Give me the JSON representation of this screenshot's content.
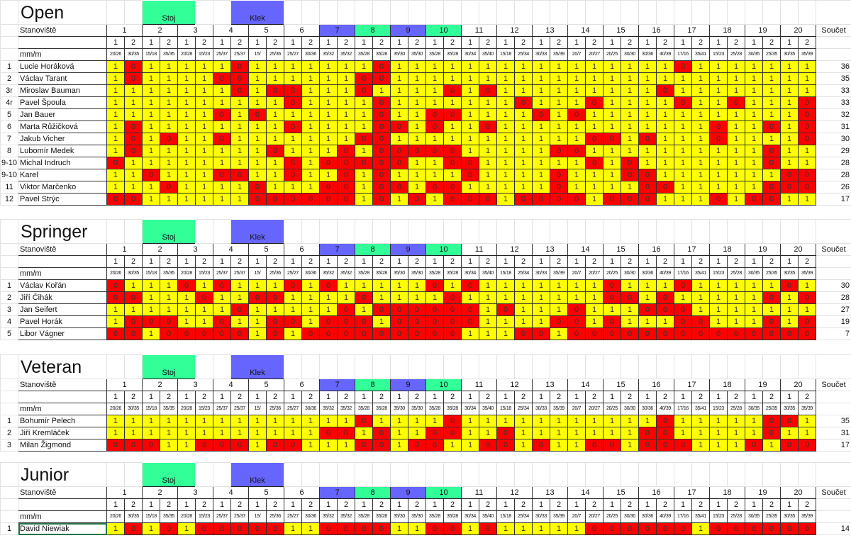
{
  "header": {
    "station_label": "Stanoviště",
    "distance_label": "mm/m",
    "sum_label": "Součet",
    "stoj_label": "Stoj",
    "klek_label": "Klek",
    "stations": [
      "1",
      "2",
      "3",
      "4",
      "5",
      "6",
      "7",
      "8",
      "9",
      "10",
      "11",
      "12",
      "13",
      "14",
      "15",
      "16",
      "17",
      "18",
      "19",
      "20"
    ],
    "shots": [
      "1",
      "2"
    ],
    "distances": [
      "20/26",
      "30/35",
      "15/18",
      "35/35",
      "20/28",
      "15/23",
      "25/37",
      "25/37",
      "15/",
      "25/36",
      "25/27",
      "30/36",
      "35/32",
      "35/32",
      "35/28",
      "35/28",
      "35/30",
      "35/30",
      "35/28",
      "35/28",
      "30/34",
      "35/40",
      "15/18",
      "25/34",
      "30/33",
      "35/39",
      "20/7",
      "20/27",
      "20/25",
      "30/30",
      "30/36",
      "40/39",
      "17/16",
      "35/41",
      "15/23",
      "25/28",
      "30/35",
      "25/35",
      "30/35",
      "35/39"
    ]
  },
  "colors": {
    "hit": "#ffff00",
    "miss": "#ff0000",
    "stoj": "#33ff99",
    "klek": "#6666ff",
    "active_cell": "#217346"
  },
  "station_highlights": {
    "7": "klek",
    "8": "stoj",
    "9": "klek",
    "10": "stoj"
  },
  "sections": [
    {
      "title": "Open",
      "rows": [
        {
          "rank": "1",
          "name": "Lucie Horáková",
          "sum": "36",
          "scores": [
            1,
            0,
            1,
            1,
            1,
            1,
            1,
            0,
            1,
            1,
            1,
            1,
            1,
            1,
            1,
            0,
            1,
            1,
            1,
            1,
            1,
            1,
            1,
            1,
            1,
            1,
            1,
            1,
            1,
            1,
            1,
            1,
            0,
            1,
            1,
            1,
            1,
            1,
            1,
            1
          ]
        },
        {
          "rank": "2",
          "name": "Václav Tarant",
          "sum": "35",
          "scores": [
            1,
            0,
            1,
            1,
            1,
            1,
            0,
            0,
            1,
            1,
            1,
            1,
            1,
            1,
            0,
            0,
            1,
            1,
            1,
            1,
            1,
            1,
            1,
            1,
            1,
            1,
            1,
            1,
            1,
            1,
            1,
            1,
            1,
            1,
            1,
            1,
            1,
            1,
            1,
            1
          ]
        },
        {
          "rank": "3r",
          "name": "Miroslav Bauman",
          "sum": "33",
          "scores": [
            1,
            1,
            1,
            1,
            1,
            1,
            1,
            0,
            1,
            0,
            0,
            1,
            1,
            1,
            0,
            1,
            1,
            1,
            1,
            0,
            1,
            0,
            1,
            1,
            1,
            1,
            1,
            1,
            1,
            1,
            1,
            0,
            1,
            1,
            1,
            1,
            1,
            1,
            1,
            1
          ]
        },
        {
          "rank": "4r",
          "name": "Pavel Špoula",
          "sum": "33",
          "scores": [
            1,
            1,
            1,
            1,
            1,
            1,
            1,
            1,
            1,
            1,
            0,
            1,
            1,
            1,
            1,
            0,
            1,
            1,
            1,
            1,
            1,
            1,
            1,
            0,
            1,
            1,
            1,
            0,
            1,
            1,
            1,
            1,
            0,
            1,
            1,
            0,
            1,
            1,
            1,
            0
          ]
        },
        {
          "rank": "5",
          "name": "Jan Bauer",
          "sum": "32",
          "scores": [
            1,
            1,
            1,
            1,
            1,
            1,
            0,
            1,
            0,
            1,
            1,
            1,
            1,
            1,
            1,
            0,
            1,
            1,
            0,
            0,
            1,
            1,
            1,
            1,
            0,
            1,
            0,
            1,
            1,
            1,
            1,
            1,
            1,
            1,
            1,
            1,
            1,
            1,
            1,
            0
          ]
        },
        {
          "rank": "6",
          "name": "Marta Růžičková",
          "sum": "31",
          "scores": [
            1,
            0,
            1,
            1,
            1,
            1,
            1,
            1,
            1,
            1,
            0,
            1,
            1,
            1,
            1,
            0,
            0,
            1,
            0,
            1,
            1,
            0,
            1,
            1,
            1,
            1,
            1,
            1,
            1,
            1,
            1,
            1,
            1,
            1,
            0,
            1,
            1,
            0,
            1,
            0
          ]
        },
        {
          "rank": "7",
          "name": "Jakub Vicher",
          "sum": "30",
          "scores": [
            1,
            0,
            1,
            0,
            1,
            1,
            0,
            1,
            1,
            1,
            1,
            1,
            1,
            1,
            0,
            0,
            1,
            1,
            1,
            1,
            1,
            1,
            1,
            1,
            1,
            1,
            1,
            0,
            0,
            1,
            0,
            1,
            1,
            1,
            0,
            1,
            1,
            1,
            1,
            0
          ]
        },
        {
          "rank": "8",
          "name": "Lubomír Medek",
          "sum": "29",
          "scores": [
            1,
            0,
            1,
            1,
            1,
            1,
            1,
            1,
            1,
            0,
            1,
            1,
            1,
            0,
            1,
            0,
            0,
            0,
            0,
            0,
            1,
            1,
            1,
            1,
            1,
            0,
            0,
            1,
            1,
            1,
            1,
            1,
            1,
            1,
            1,
            1,
            1,
            0,
            1,
            1
          ]
        },
        {
          "rank": "9-10",
          "name": "Michal Indruch",
          "sum": "28",
          "scores": [
            0,
            1,
            1,
            1,
            1,
            1,
            1,
            1,
            1,
            1,
            0,
            1,
            0,
            0,
            0,
            0,
            0,
            1,
            1,
            0,
            0,
            1,
            1,
            1,
            1,
            1,
            1,
            0,
            1,
            0,
            1,
            1,
            1,
            1,
            1,
            1,
            1,
            0,
            1,
            1
          ]
        },
        {
          "rank": "9-10",
          "name": "Karel",
          "sum": "28",
          "scores": [
            1,
            1,
            0,
            1,
            1,
            1,
            0,
            0,
            1,
            1,
            0,
            1,
            1,
            0,
            1,
            0,
            1,
            1,
            1,
            1,
            0,
            1,
            1,
            1,
            1,
            0,
            1,
            1,
            1,
            0,
            0,
            1,
            1,
            1,
            1,
            1,
            1,
            1,
            0,
            0
          ]
        },
        {
          "rank": "11",
          "name": "Viktor Marčenko",
          "sum": "26",
          "scores": [
            1,
            1,
            1,
            0,
            1,
            1,
            1,
            1,
            0,
            1,
            1,
            1,
            0,
            0,
            1,
            0,
            0,
            1,
            0,
            0,
            1,
            1,
            1,
            1,
            1,
            0,
            1,
            1,
            1,
            1,
            0,
            0,
            1,
            1,
            1,
            1,
            1,
            0,
            0,
            0
          ]
        },
        {
          "rank": "12",
          "name": "Pavel Strýc",
          "sum": "17",
          "scores": [
            0,
            0,
            1,
            1,
            1,
            1,
            1,
            1,
            0,
            0,
            0,
            0,
            0,
            0,
            1,
            0,
            1,
            0,
            1,
            0,
            0,
            0,
            1,
            0,
            0,
            0,
            0,
            1,
            0,
            0,
            0,
            1,
            1,
            1,
            0,
            1,
            0,
            0,
            1,
            1
          ]
        }
      ]
    },
    {
      "title": "Springer",
      "rows": [
        {
          "rank": "1",
          "name": "Václav Kořán",
          "sum": "30",
          "scores": [
            0,
            1,
            1,
            1,
            0,
            1,
            0,
            1,
            1,
            1,
            0,
            1,
            0,
            1,
            1,
            1,
            1,
            1,
            0,
            1,
            0,
            1,
            1,
            1,
            1,
            1,
            1,
            1,
            0,
            1,
            1,
            1,
            0,
            1,
            1,
            1,
            1,
            1,
            0,
            1
          ]
        },
        {
          "rank": "2",
          "name": "Jiří Čihák",
          "sum": "28",
          "scores": [
            0,
            0,
            1,
            1,
            1,
            0,
            1,
            1,
            0,
            0,
            1,
            1,
            1,
            1,
            0,
            1,
            1,
            1,
            1,
            0,
            1,
            1,
            1,
            1,
            1,
            1,
            1,
            1,
            0,
            0,
            1,
            0,
            1,
            1,
            1,
            1,
            1,
            0,
            1,
            0
          ]
        },
        {
          "rank": "3",
          "name": "Jan Seifert",
          "sum": "27",
          "scores": [
            1,
            1,
            1,
            1,
            1,
            1,
            1,
            0,
            1,
            1,
            1,
            1,
            1,
            0,
            1,
            0,
            0,
            0,
            0,
            0,
            0,
            1,
            0,
            1,
            1,
            1,
            0,
            1,
            1,
            1,
            0,
            0,
            0,
            1,
            1,
            1,
            1,
            1,
            1,
            1
          ]
        },
        {
          "rank": "4",
          "name": "Pavel Horák",
          "sum": "19",
          "scores": [
            1,
            0,
            0,
            0,
            1,
            1,
            0,
            1,
            1,
            0,
            0,
            1,
            0,
            0,
            0,
            1,
            0,
            0,
            0,
            0,
            0,
            1,
            1,
            1,
            1,
            0,
            0,
            1,
            0,
            1,
            1,
            1,
            0,
            0,
            1,
            1,
            1,
            0,
            1,
            0
          ]
        },
        {
          "rank": "5",
          "name": "Libor Vágner",
          "sum": "7",
          "scores": [
            0,
            0,
            1,
            0,
            0,
            0,
            0,
            0,
            1,
            0,
            1,
            0,
            0,
            0,
            0,
            0,
            0,
            0,
            0,
            0,
            1,
            1,
            1,
            0,
            0,
            1,
            0,
            0,
            0,
            0,
            0,
            0,
            0,
            0,
            0,
            0,
            0,
            0,
            0,
            0
          ]
        }
      ]
    },
    {
      "title": "Veteran",
      "rows": [
        {
          "rank": "1",
          "name": "Bohumír Pelech",
          "sum": "35",
          "scores": [
            1,
            1,
            1,
            1,
            1,
            1,
            1,
            1,
            1,
            1,
            1,
            1,
            1,
            1,
            0,
            1,
            1,
            1,
            1,
            0,
            1,
            1,
            1,
            1,
            1,
            1,
            1,
            1,
            1,
            1,
            1,
            0,
            1,
            1,
            1,
            1,
            1,
            0,
            0,
            1
          ]
        },
        {
          "rank": "2",
          "name": "Jiří Kremláček",
          "sum": "31",
          "scores": [
            1,
            1,
            1,
            1,
            1,
            1,
            1,
            1,
            1,
            1,
            1,
            1,
            0,
            0,
            1,
            0,
            1,
            1,
            0,
            0,
            1,
            1,
            0,
            1,
            1,
            1,
            1,
            1,
            1,
            1,
            0,
            0,
            1,
            1,
            1,
            1,
            1,
            0,
            1,
            1
          ]
        },
        {
          "rank": "3",
          "name": "Milan Žigmond",
          "sum": "17",
          "scores": [
            0,
            0,
            0,
            1,
            1,
            0,
            0,
            0,
            1,
            0,
            0,
            1,
            1,
            1,
            0,
            0,
            1,
            0,
            0,
            1,
            1,
            0,
            0,
            1,
            0,
            1,
            1,
            0,
            0,
            1,
            0,
            0,
            0,
            1,
            1,
            1,
            0,
            1,
            0,
            0
          ]
        }
      ]
    },
    {
      "title": "Junior",
      "rows": [
        {
          "rank": "1",
          "name": "David Niewiak",
          "sum": "14",
          "scores": [
            1,
            0,
            1,
            0,
            1,
            0,
            0,
            0,
            0,
            0,
            1,
            1,
            0,
            0,
            0,
            0,
            1,
            1,
            0,
            0,
            1,
            0,
            1,
            1,
            1,
            1,
            1,
            0,
            0,
            0,
            0,
            0,
            0,
            1,
            0,
            0,
            0,
            0,
            0,
            0
          ]
        }
      ]
    }
  ]
}
